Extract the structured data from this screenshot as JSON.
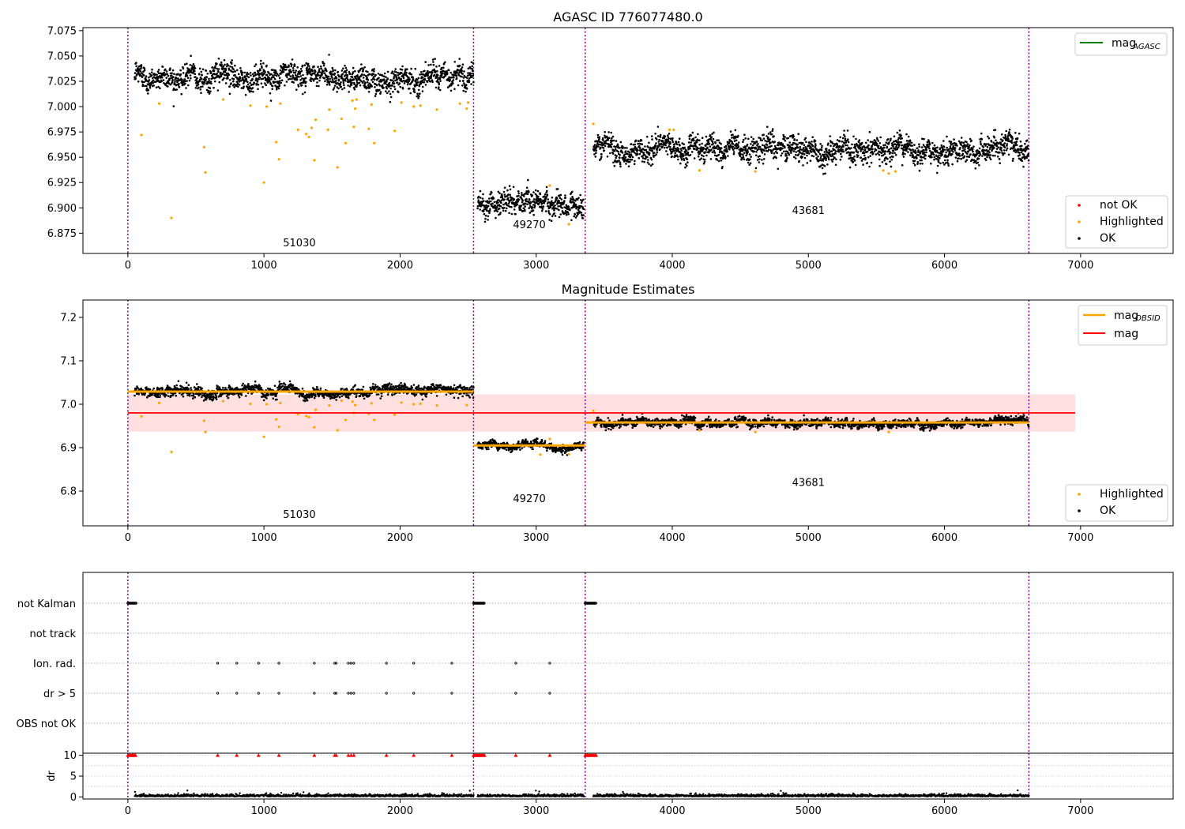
{
  "chart_data": [
    {
      "id": "top",
      "type": "scatter",
      "title": "AGASC ID 776077480.0",
      "xlim": [
        -330,
        7680
      ],
      "ylim": [
        6.855,
        7.078
      ],
      "xticks": [
        0,
        1000,
        2000,
        3000,
        4000,
        5000,
        6000,
        7000
      ],
      "yticks": [
        6.875,
        6.9,
        6.925,
        6.95,
        6.975,
        7.0,
        7.025,
        7.05,
        7.075
      ],
      "ytick_labels": [
        "6.875",
        "6.900",
        "6.925",
        "6.950",
        "6.975",
        "7.000",
        "7.025",
        "7.050",
        "7.075"
      ],
      "vlines": [
        0,
        2540,
        3360,
        6620
      ],
      "obsid_labels": [
        {
          "text": "51030",
          "x": 1260,
          "y": 6.862
        },
        {
          "text": "49270",
          "x": 2950,
          "y": 6.88
        },
        {
          "text": "43681",
          "x": 5000,
          "y": 6.894
        }
      ],
      "segments": [
        {
          "x": [
            50,
            2540
          ],
          "mean": 7.03,
          "spread": 0.008
        },
        {
          "x": [
            2570,
            3350
          ],
          "mean": 6.905,
          "spread": 0.008
        },
        {
          "x": [
            3420,
            6620
          ],
          "mean": 6.958,
          "spread": 0.008
        }
      ],
      "highlighted": [
        [
          100,
          6.972
        ],
        [
          230,
          7.003
        ],
        [
          320,
          6.89
        ],
        [
          560,
          6.96
        ],
        [
          570,
          6.935
        ],
        [
          700,
          7.007
        ],
        [
          900,
          7.001
        ],
        [
          1000,
          6.925
        ],
        [
          1020,
          7.0
        ],
        [
          1090,
          6.965
        ],
        [
          1110,
          6.948
        ],
        [
          1120,
          7.003
        ],
        [
          1250,
          6.977
        ],
        [
          1310,
          6.973
        ],
        [
          1330,
          6.97
        ],
        [
          1350,
          6.979
        ],
        [
          1370,
          6.947
        ],
        [
          1380,
          6.987
        ],
        [
          1470,
          6.977
        ],
        [
          1480,
          6.997
        ],
        [
          1540,
          6.94
        ],
        [
          1570,
          6.988
        ],
        [
          1600,
          6.964
        ],
        [
          1650,
          7.006
        ],
        [
          1660,
          6.98
        ],
        [
          1670,
          6.998
        ],
        [
          1680,
          7.007
        ],
        [
          1770,
          6.978
        ],
        [
          1790,
          7.002
        ],
        [
          1810,
          6.964
        ],
        [
          1960,
          6.976
        ],
        [
          2010,
          7.004
        ],
        [
          2100,
          7.0
        ],
        [
          2150,
          7.001
        ],
        [
          2270,
          6.997
        ],
        [
          2440,
          7.003
        ],
        [
          2490,
          6.998
        ],
        [
          2500,
          7.004
        ],
        [
          3100,
          6.922
        ],
        [
          3240,
          6.884
        ],
        [
          3420,
          6.983
        ],
        [
          3980,
          6.977
        ],
        [
          4010,
          6.977
        ],
        [
          4200,
          6.937
        ],
        [
          4610,
          6.936
        ],
        [
          5550,
          6.937
        ],
        [
          5590,
          6.934
        ],
        [
          5640,
          6.936
        ]
      ],
      "legend_top": [
        {
          "label": "mag",
          "sub": "AGASC",
          "color": "#008000"
        }
      ],
      "legend_bottom": [
        {
          "label": "not OK",
          "color": "#ff0000"
        },
        {
          "label": "Highlighted",
          "color": "#ffa500"
        },
        {
          "label": "OK",
          "color": "#000000"
        }
      ]
    },
    {
      "id": "mid",
      "type": "scatter",
      "title": "Magnitude Estimates",
      "xlim": [
        -330,
        7680
      ],
      "ylim": [
        6.72,
        7.24
      ],
      "xticks": [
        0,
        1000,
        2000,
        3000,
        4000,
        5000,
        6000,
        7000
      ],
      "yticks": [
        6.8,
        6.9,
        7.0,
        7.1,
        7.2
      ],
      "ytick_labels": [
        "6.8",
        "6.9",
        "7.0",
        "7.1",
        "7.2"
      ],
      "vlines": [
        0,
        2540,
        3360,
        6620
      ],
      "mag": 6.98,
      "mag_band": [
        6.937,
        7.023
      ],
      "mag_band_x": [
        0,
        6960
      ],
      "obsid_mags": [
        {
          "x": [
            0,
            2540
          ],
          "y": 7.029
        },
        {
          "x": [
            2540,
            3360
          ],
          "y": 6.905
        },
        {
          "x": [
            3360,
            6620
          ],
          "y": 6.958
        }
      ],
      "obsid_labels": [
        {
          "text": "51030",
          "x": 1260,
          "y": 6.738
        },
        {
          "text": "49270",
          "x": 2950,
          "y": 6.775
        },
        {
          "text": "43681",
          "x": 5000,
          "y": 6.812
        }
      ],
      "segments": [
        {
          "x": [
            50,
            2540
          ],
          "mean": 7.03,
          "spread": 0.008
        },
        {
          "x": [
            2570,
            3350
          ],
          "mean": 6.905,
          "spread": 0.006
        },
        {
          "x": [
            3420,
            6620
          ],
          "mean": 6.958,
          "spread": 0.006
        }
      ],
      "highlighted": [
        [
          100,
          6.972
        ],
        [
          230,
          7.003
        ],
        [
          320,
          6.89
        ],
        [
          560,
          6.962
        ],
        [
          570,
          6.936
        ],
        [
          700,
          7.007
        ],
        [
          900,
          7.001
        ],
        [
          1000,
          6.925
        ],
        [
          1020,
          7.0
        ],
        [
          1090,
          6.965
        ],
        [
          1110,
          6.948
        ],
        [
          1120,
          7.003
        ],
        [
          1250,
          6.977
        ],
        [
          1310,
          6.973
        ],
        [
          1330,
          6.97
        ],
        [
          1370,
          6.947
        ],
        [
          1380,
          6.987
        ],
        [
          1480,
          6.997
        ],
        [
          1540,
          6.94
        ],
        [
          1570,
          7.008
        ],
        [
          1600,
          6.964
        ],
        [
          1650,
          7.006
        ],
        [
          1660,
          6.98
        ],
        [
          1670,
          6.998
        ],
        [
          1770,
          6.978
        ],
        [
          1790,
          7.002
        ],
        [
          1810,
          6.964
        ],
        [
          1960,
          6.976
        ],
        [
          2010,
          7.004
        ],
        [
          2100,
          7.0
        ],
        [
          2150,
          7.001
        ],
        [
          2270,
          6.997
        ],
        [
          2490,
          6.998
        ],
        [
          3030,
          6.884
        ],
        [
          3100,
          6.92
        ],
        [
          3240,
          6.885
        ],
        [
          3420,
          6.985
        ],
        [
          4200,
          6.94
        ],
        [
          4610,
          6.936
        ],
        [
          5590,
          6.936
        ]
      ],
      "legend_top": [
        {
          "label": "mag",
          "sub": "OBSID",
          "color": "#ffa500"
        },
        {
          "label": "mag",
          "sub": "",
          "color": "#ff0000"
        }
      ],
      "legend_bottom": [
        {
          "label": "Highlighted",
          "color": "#ffa500"
        },
        {
          "label": "OK",
          "color": "#000000"
        }
      ]
    },
    {
      "id": "flags",
      "type": "scatter",
      "xlim": [
        -330,
        7680
      ],
      "vlines": [
        0,
        2540,
        3360,
        6620
      ],
      "categories": [
        "not Kalman",
        "not track",
        "Ion. rad.",
        "dr > 5",
        "OBS not OK"
      ],
      "flag_points": {
        "not Kalman": [
          [
            0,
            60
          ],
          [
            2540,
            2620
          ],
          [
            3360,
            3440
          ]
        ],
        "not track": [],
        "Ion. rad.": [
          660,
          800,
          960,
          1110,
          1370,
          1520,
          1530,
          1620,
          1640,
          1660,
          1900,
          2100,
          2380,
          2850,
          3100
        ],
        "dr > 5": [
          660,
          800,
          960,
          1110,
          1370,
          1520,
          1530,
          1620,
          1640,
          1660,
          1900,
          2100,
          2380,
          2850,
          3100
        ],
        "OBS not OK": []
      }
    },
    {
      "id": "dr",
      "type": "scatter",
      "ylabel": "dr",
      "xlim": [
        -330,
        7680
      ],
      "ylim": [
        -0.5,
        10.5
      ],
      "yticks": [
        0,
        5,
        10
      ],
      "ytick_labels": [
        "0",
        "5",
        "10"
      ],
      "xticks": [
        0,
        1000,
        2000,
        3000,
        4000,
        5000,
        6000,
        7000
      ],
      "vlines": [
        0,
        2540,
        3360,
        6620
      ],
      "clipped": [
        [
          0,
          60
        ],
        660,
        800,
        960,
        1110,
        1370,
        1520,
        1530,
        1620,
        1640,
        1660,
        1900,
        2100,
        2380,
        [
          2540,
          2620
        ],
        2850,
        3100,
        [
          3360,
          3440
        ]
      ],
      "segments": [
        {
          "x": [
            50,
            2540
          ]
        },
        {
          "x": [
            2570,
            3350
          ]
        },
        {
          "x": [
            3420,
            6620
          ]
        }
      ]
    }
  ]
}
